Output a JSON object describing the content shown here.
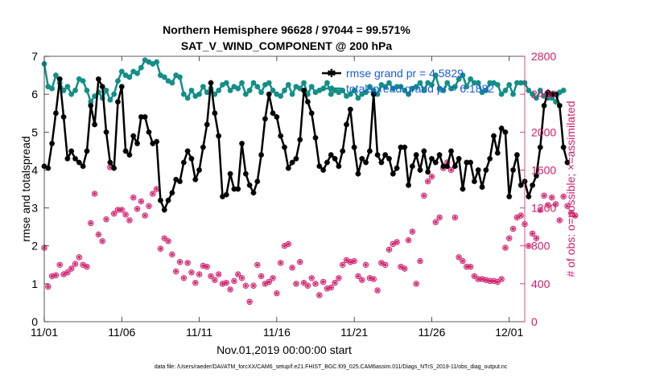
{
  "chart_data": {
    "type": "line",
    "title_line1": "Northern Hemisphere 96628 / 97044 = 99.571%",
    "title_line2": "SAT_V_WIND_COMPONENT @ 200 hPa",
    "xlabel": "Nov.01,2019 00:00:00 start",
    "ylabel": "rmse and totalspread",
    "ylabel_right": "# of obs: o=possible; ×=assimilated",
    "footer": "data file: /Users/raeder/DAI/ATM_forcXX/CAM6_setup/f.e21.FHIST_BGC.f09_025.CAM6assim.011/Diags_NTrS_2019-11/obs_diag_output.nc",
    "xlim": [
      0,
      31
    ],
    "ylim": [
      0,
      7
    ],
    "ylim_right": [
      0,
      2800
    ],
    "x_ticks": [
      0,
      5,
      10,
      15,
      20,
      25,
      30
    ],
    "x_tick_labels": [
      "11/01",
      "11/06",
      "11/11",
      "11/16",
      "11/21",
      "11/26",
      "12/01"
    ],
    "y_ticks": [
      0,
      1,
      2,
      3,
      4,
      5,
      6,
      7
    ],
    "y_tick_labels": [
      "0",
      "1",
      "2",
      "3",
      "4",
      "5",
      "6",
      "7"
    ],
    "y_ticks_right": [
      0,
      400,
      800,
      1200,
      1600,
      2000,
      2400,
      2800
    ],
    "y_tick_labels_right": [
      "0",
      "400",
      "800",
      "1200",
      "1600",
      "2000",
      "2400",
      "2800"
    ],
    "legend": [
      {
        "name": "rmse grand pr = 4.5829",
        "color": "#000000"
      },
      {
        "name": "totalspread grand pr = 6.1882",
        "color": "#138f87"
      }
    ],
    "legend_placement": "top-right",
    "colors": {
      "rmse": "#000000",
      "spread": "#138f87",
      "obs": "#d01c6b"
    },
    "series": [
      {
        "name": "rmse",
        "x_start": 0,
        "x_step": 0.25,
        "values": [
          4.1,
          4.05,
          4.7,
          5.5,
          6.4,
          5.4,
          4.3,
          4.5,
          4.3,
          4.2,
          4.1,
          4.5,
          5.7,
          5.2,
          6.4,
          6.2,
          5.0,
          4.2,
          4.05,
          5.8,
          6.2,
          4.5,
          4.4,
          4.9,
          4.7,
          5.4,
          5.4,
          5.0,
          4.7,
          4.75,
          3.2,
          2.95,
          3.2,
          3.4,
          3.75,
          3.7,
          4.2,
          4.5,
          4.3,
          3.75,
          4.0,
          4.6,
          5.2,
          6.3,
          5.5,
          4.9,
          3.3,
          3.35,
          3.9,
          3.5,
          3.5,
          4.7,
          3.9,
          3.6,
          3.4,
          3.7,
          4.4,
          5.35,
          6.0,
          5.5,
          5.4,
          4.9,
          4.6,
          4.05,
          4.2,
          4.3,
          4.8,
          6.1,
          5.8,
          5.5,
          4.85,
          4.1,
          4.0,
          4.2,
          4.4,
          4.3,
          4.1,
          4.5,
          5.2,
          5.6,
          4.6,
          3.9,
          4.3,
          4.2,
          4.5,
          6.0,
          4.4,
          4.2,
          4.4,
          4.3,
          3.9,
          4.05,
          4.6,
          4.6,
          3.6,
          4.1,
          4.4,
          4.0,
          4.5,
          3.95,
          4.3,
          4.2,
          4.4,
          4.1,
          4.1,
          4.5,
          4.1,
          4.3,
          3.5,
          4.2,
          4.2,
          3.7,
          4.0,
          3.55,
          4.0,
          4.3,
          4.9,
          4.45,
          5.1,
          5.0,
          3.3,
          4.0,
          4.4,
          3.6,
          3.7,
          3.3,
          3.6,
          3.85,
          4.6,
          5.7,
          6.05,
          6.0,
          6.0,
          5.7,
          4.6,
          4.2
        ]
      },
      {
        "name": "totalspread",
        "x_start": 0,
        "x_step": 0.25,
        "values": [
          6.8,
          6.2,
          6.15,
          6.5,
          6.3,
          6.1,
          6.2,
          6.0,
          6.1,
          6.4,
          6.35,
          6.1,
          5.8,
          5.95,
          6.05,
          5.9,
          6.1,
          5.85,
          6.0,
          6.35,
          6.6,
          6.5,
          6.45,
          6.6,
          6.55,
          6.7,
          6.9,
          6.85,
          6.8,
          6.85,
          6.5,
          6.45,
          6.35,
          6.3,
          6.5,
          6.45,
          6.0,
          5.9,
          6.1,
          5.95,
          6.0,
          6.2,
          6.05,
          6.15,
          6.0,
          6.1,
          6.25,
          6.3,
          6.1,
          6.2,
          6.15,
          6.3,
          6.0,
          6.1,
          6.3,
          6.2,
          6.05,
          6.25,
          6.3,
          6.1,
          6.0,
          5.95,
          6.1,
          6.25,
          6.0,
          6.2,
          6.15,
          6.3,
          6.0,
          6.2,
          6.05,
          6.1,
          6.15,
          6.3,
          6.0,
          6.1,
          6.05,
          6.1,
          5.95,
          6.0,
          6.1,
          5.9,
          6.0,
          6.05,
          6.2,
          6.1,
          6.0,
          6.25,
          6.2,
          6.3,
          6.15,
          6.2,
          6.2,
          6.1,
          6.0,
          6.15,
          6.2,
          6.3,
          6.1,
          6.3,
          6.25,
          6.5,
          6.15,
          6.1,
          6.3,
          6.15,
          6.2,
          6.4,
          6.5,
          6.2,
          6.4,
          6.3,
          6.3,
          6.05,
          6.1,
          6.3,
          6.3,
          6.25,
          6.0,
          6.1,
          6.25,
          6.0,
          6.3,
          6.3,
          6.3,
          6.1,
          6.0,
          5.9,
          6.1,
          5.95,
          5.9,
          5.9,
          5.8,
          6.05,
          6.1
        ]
      },
      {
        "name": "obs_assimilated",
        "x_start": 0,
        "x_step": 0.25,
        "values": [
          780,
          370,
          480,
          490,
          600,
          500,
          520,
          560,
          610,
          680,
          600,
          580,
          1040,
          1350,
          920,
          850,
          1080,
          1630,
          1140,
          1180,
          1180,
          1130,
          1070,
          1310,
          1190,
          1270,
          1120,
          1220,
          1350,
          1400,
          770,
          880,
          850,
          710,
          530,
          630,
          460,
          620,
          520,
          410,
          500,
          590,
          580,
          480,
          440,
          500,
          400,
          410,
          340,
          430,
          500,
          460,
          380,
          210,
          380,
          600,
          480,
          400,
          420,
          460,
          300,
          620,
          800,
          820,
          570,
          400,
          630,
          410,
          380,
          460,
          400,
          280,
          420,
          350,
          360,
          410,
          460,
          600,
          650,
          630,
          640,
          480,
          440,
          600,
          460,
          450,
          330,
          620,
          600,
          760,
          820,
          840,
          580,
          560,
          860,
          950,
          400,
          640,
          1330,
          1480,
          1530,
          1050,
          1100,
          1620,
          1680,
          1600,
          1100,
          680,
          640,
          580,
          580,
          480,
          450,
          450,
          440,
          430,
          430,
          420,
          450,
          780,
          880,
          980,
          1100,
          1120,
          1030,
          800,
          930,
          880,
          1180,
          1330,
          1230,
          1310,
          1240,
          1070,
          1320,
          1220,
          1150,
          1120
        ]
      },
      {
        "name": "obs_possible",
        "x_start": 0,
        "x_step": 0.25,
        "values": [
          780,
          370,
          480,
          490,
          600,
          500,
          520,
          560,
          610,
          680,
          600,
          580,
          1040,
          1350,
          920,
          850,
          1080,
          1630,
          1140,
          1180,
          1180,
          1130,
          1070,
          1310,
          1190,
          1270,
          1120,
          1220,
          1350,
          1400,
          770,
          880,
          850,
          710,
          530,
          630,
          460,
          620,
          520,
          410,
          500,
          590,
          580,
          480,
          440,
          500,
          400,
          410,
          340,
          430,
          500,
          460,
          380,
          210,
          380,
          600,
          480,
          400,
          420,
          460,
          300,
          620,
          800,
          820,
          570,
          400,
          630,
          410,
          380,
          460,
          400,
          280,
          420,
          350,
          360,
          410,
          460,
          600,
          650,
          630,
          640,
          480,
          440,
          600,
          460,
          450,
          330,
          620,
          600,
          760,
          820,
          840,
          580,
          560,
          860,
          950,
          400,
          640,
          1330,
          1480,
          1530,
          1050,
          1100,
          1620,
          1680,
          1600,
          1100,
          680,
          640,
          580,
          580,
          480,
          450,
          450,
          440,
          430,
          430,
          420,
          450,
          780,
          880,
          980,
          1100,
          1120,
          1030,
          800,
          930,
          880,
          1180,
          1330,
          1230,
          1310,
          1240,
          1070,
          1320,
          1220,
          1150,
          1120
        ]
      }
    ]
  }
}
